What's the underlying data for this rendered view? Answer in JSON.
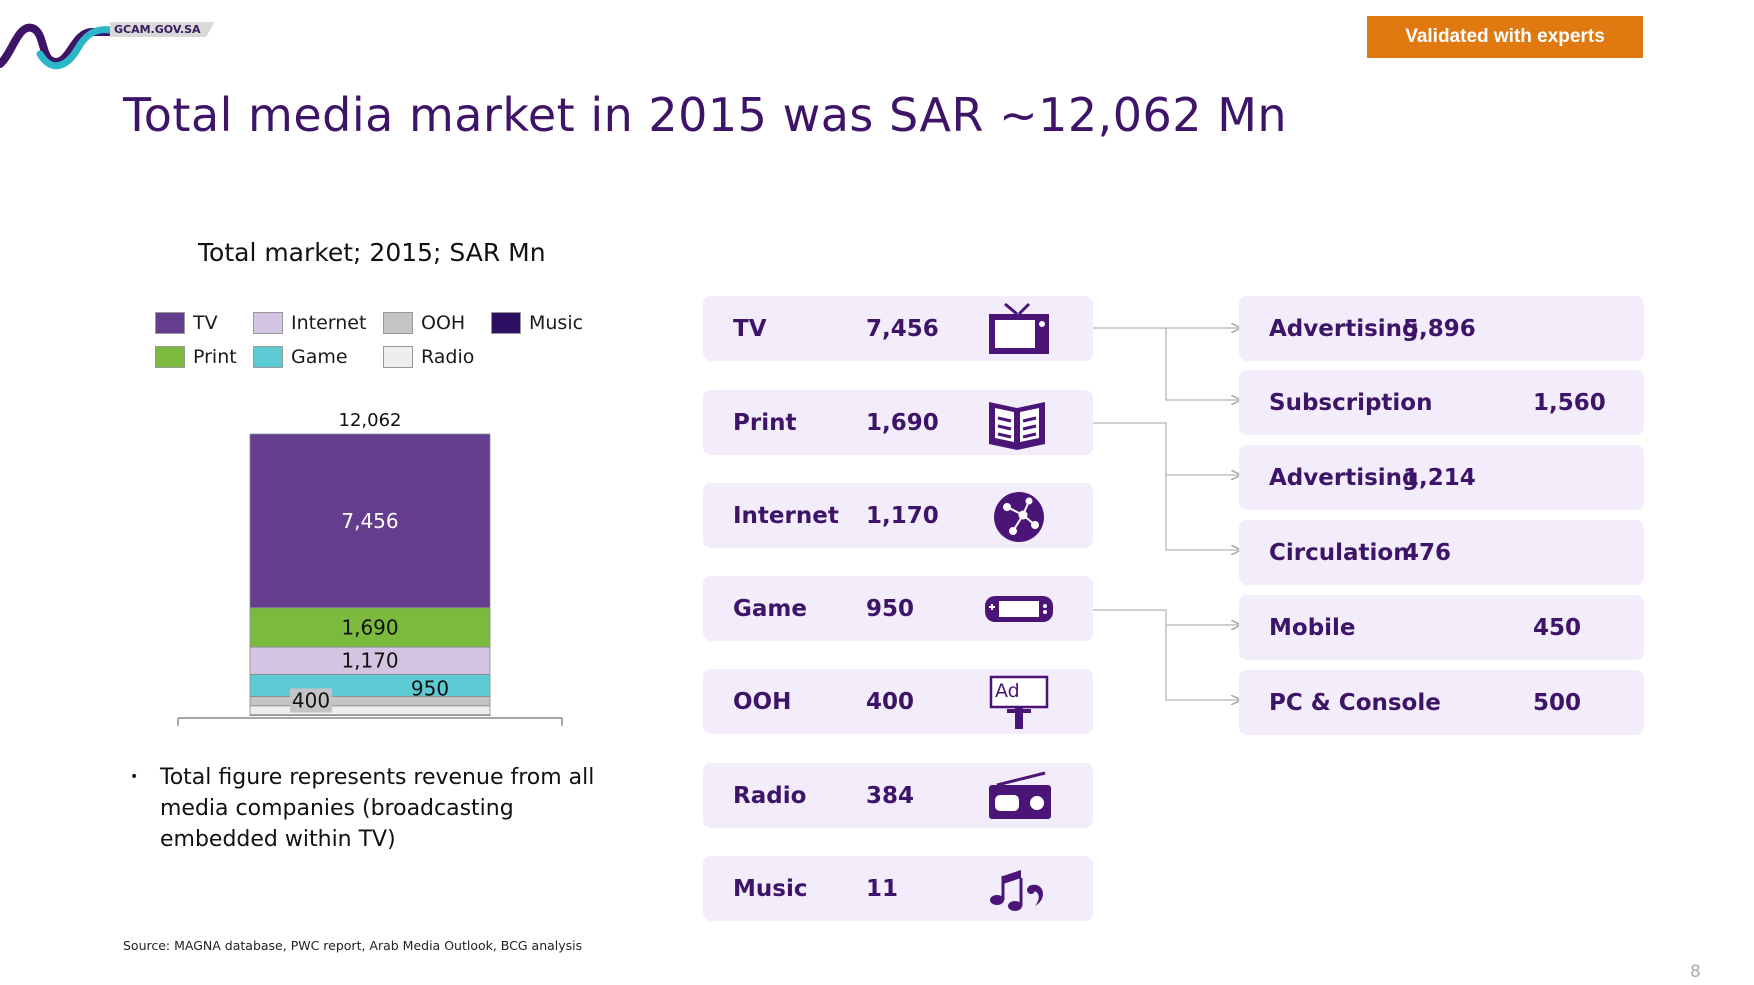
{
  "header": {
    "logo_text": "GCAM.GOV.SA",
    "badge": "Validated with experts",
    "title": "Total media market in 2015 was SAR ~12,062 Mn"
  },
  "chart_data": {
    "type": "bar",
    "subtype": "stacked",
    "title": "Total market; 2015; SAR Mn",
    "categories": [
      "2015"
    ],
    "total": 12062,
    "total_label": "12,062",
    "series": [
      {
        "name": "TV",
        "values": [
          7456
        ],
        "label": "7,456",
        "color": "#653d8e"
      },
      {
        "name": "Print",
        "values": [
          1690
        ],
        "label": "1,690",
        "color": "#7cba3e"
      },
      {
        "name": "Internet",
        "values": [
          1170
        ],
        "label": "1,170",
        "color": "#d3c4e2"
      },
      {
        "name": "Game",
        "values": [
          950
        ],
        "label": "950",
        "color": "#5ccbd4"
      },
      {
        "name": "OOH",
        "values": [
          400
        ],
        "label": "400",
        "color": "#c4c4c4"
      },
      {
        "name": "Radio",
        "values": [
          384
        ],
        "label": "",
        "color": "#eeeeee"
      },
      {
        "name": "Music",
        "values": [
          11
        ],
        "label": "",
        "color": "#2d0f62"
      }
    ],
    "legend": [
      "TV",
      "Internet",
      "OOH",
      "Music",
      "Print",
      "Game",
      "Radio"
    ],
    "legend_position": "top",
    "ylim": [
      0,
      12062
    ],
    "grid": false
  },
  "note": "Total figure represents revenue from all media companies (broadcasting embedded within TV)",
  "segments": [
    {
      "name": "TV",
      "value": "7,456",
      "icon": "tv-icon"
    },
    {
      "name": "Print",
      "value": "1,690",
      "icon": "book-icon"
    },
    {
      "name": "Internet",
      "value": "1,170",
      "icon": "globe-icon"
    },
    {
      "name": "Game",
      "value": "950",
      "icon": "game-console-icon"
    },
    {
      "name": "OOH",
      "value": "400",
      "icon": "billboard-icon"
    },
    {
      "name": "Radio",
      "value": "384",
      "icon": "radio-icon"
    },
    {
      "name": "Music",
      "value": "11",
      "icon": "music-icon"
    }
  ],
  "breakdown": [
    {
      "name": "Advertising",
      "value": "5,896"
    },
    {
      "name": "Subscription",
      "value": "1,560"
    },
    {
      "name": "Advertising",
      "value": "1,214"
    },
    {
      "name": "Circulation",
      "value": "476"
    },
    {
      "name": "Mobile",
      "value": "450"
    },
    {
      "name": "PC & Console",
      "value": "500"
    }
  ],
  "icon_text": {
    "ad": "Ad"
  },
  "source": "Source: MAGNA database, PWC report, Arab Media Outlook, BCG analysis",
  "page_number": "8"
}
